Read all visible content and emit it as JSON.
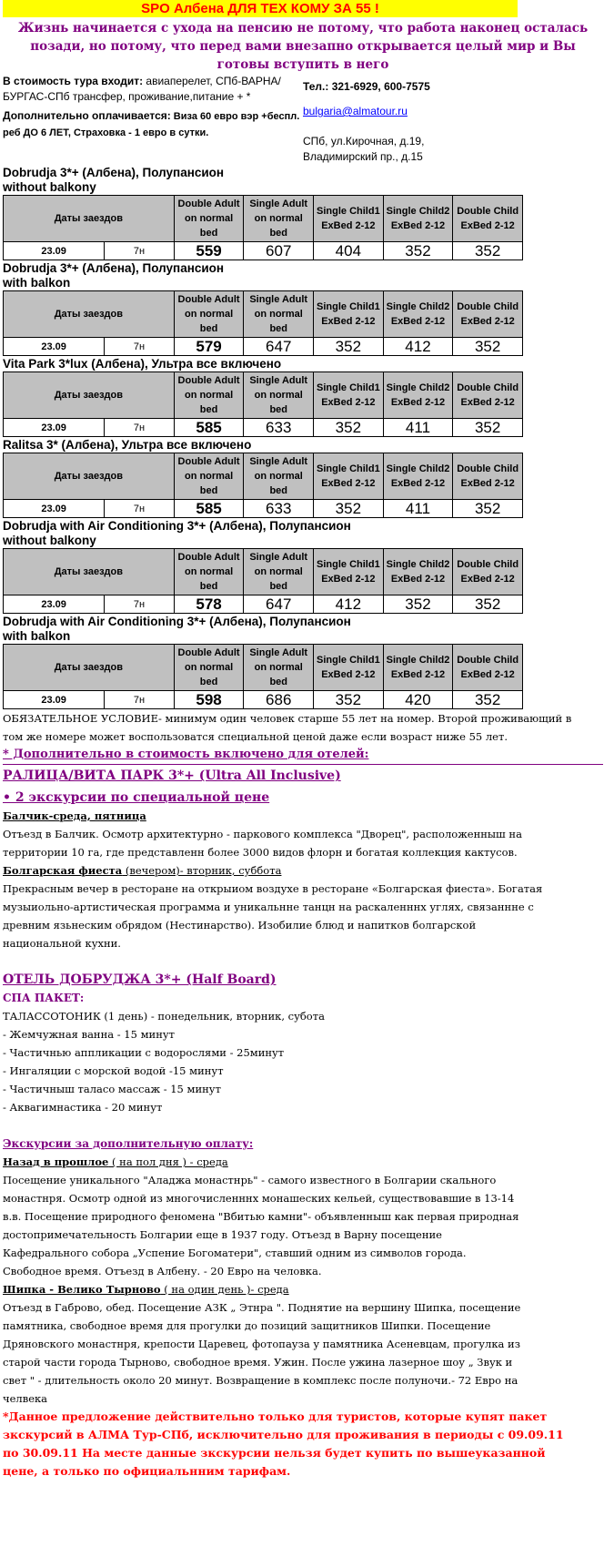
{
  "banner": "SPO Албена  ДЛЯ ТЕХ КОМУ ЗА 55 !",
  "motto": "Жизнь начинается с ухода на пенсию не потому, что работа наконец осталась позади, но потому, что перед вами внезапно открывается целый мир и Вы готовы вступить в него",
  "included_label": "В стоимость тура входит:",
  "included_text": " авиаперелет, СПб-ВАРНА/БУРГАС-СПб трансфер, проживание,питание +  *",
  "extra_label": "Дополнительно оплачивается:",
  "extra_text": " Виза 60 евро вэр +беспл. реб ДО 6 ЛЕТ,   Страховка - 1 евро в сутки.",
  "phone": "Тел.: 321-6929, 600-7575",
  "email": "bulgaria@almatour.ru ",
  "address1": "СПб, ул.Кирочная, д.19,",
  "address2": "Владимирский пр., д.15",
  "table_headers": [
    "Даты заездов",
    "Double Adult on normal bed",
    "Single Adult on normal bed",
    "Single Child1 ExBed 2-12",
    "Single Child2 ExBed 2-12",
    "Double Child ExBed 2-12"
  ],
  "hotels": [
    {
      "title1": "Dobrudja 3*+ (Албена), Полупансион",
      "title2": "without balkony",
      "date": "23.09",
      "nights": "7н",
      "prices": [
        "559",
        "607",
        "404",
        "352",
        "352"
      ]
    },
    {
      "title1": "Dobrudja 3*+ (Албена), Полупансион",
      "title2": "with balkon",
      "date": "23.09",
      "nights": "7н",
      "prices": [
        "579",
        "647",
        "352",
        "412",
        "352"
      ]
    },
    {
      "title1": "Vita Park 3*lux (Албена), Ультра все включено",
      "title2": "",
      "date": "23.09",
      "nights": "7н",
      "prices": [
        "585",
        "633",
        "352",
        "411",
        "352"
      ]
    },
    {
      "title1": "Ralitsa 3* (Албена), Ультра все включено",
      "title2": "",
      "date": "23.09",
      "nights": "7н",
      "prices": [
        "585",
        "633",
        "352",
        "411",
        "352"
      ]
    },
    {
      "title1": "Dobrudja with Air Conditioning 3*+ (Албена), Полупансион",
      "title2": "without balkony",
      "date": "23.09",
      "nights": "7н",
      "prices": [
        "578",
        "647",
        "412",
        "352",
        "352"
      ]
    },
    {
      "title1": "Dobrudja with Air Conditioning 3*+ (Албена), Полупансион",
      "title2": "with balkon",
      "date": "23.09",
      "nights": "7н",
      "prices": [
        "598",
        "686",
        "352",
        "420",
        "352"
      ]
    }
  ],
  "condition": "ОБЯЗАТЕЛЬНОЕ УСЛОВИЕ- минимум один человек старше 55 лет на номер. Второй проживающий в том же номере может воспользоватся специальной ценой даже если возраст ниже 55 лет.",
  "extra_included": "* Дополнительно в стоимость включено для отелей:",
  "ralitsa_heading": "РАЛИЦА/ВИТА ПАРК 3*+ (Ultra All Inclusive)",
  "two_excursions": "•  2 экскурсии по специальной цене",
  "balchik_title": "Балчик-среда, пятница",
  "balchik_text": "Отъезд в Балчик. Осмотр архитектурно - паркового комплекса \"Дворец\", расположенныш на территории 10 га, где представленн более 3000 видов флорн и богатая коллекция кактусов.",
  "fiesta_title": "Болгарская фиеста",
  "fiesta_sub": " (вечером)- вторник, суббота",
  "fiesta_text": "Прекрасным вечер в ресторане на открыиом воздухе в ресторане «Болгарская фиеста». Богатая музыиольно-артистическая программа и уникальнне танцн на раскаленннх углях, связаннне с древним язьнеским обрядом (Нестинарство). Изобилие блюд и напитков болгарской национальной кухни.",
  "dobrudja_heading": "ОТЕЛЬ ДОБРУДЖА 3*+ (Half Board)",
  "spa_label": "СПА ПАКЕТ:",
  "spa_items": [
    "ТАЛАССОТОНИК (1 день) - понедельник, вторник, субота",
    "- Жемчужная ванна - 15 минут",
    "- Частичнью аппликации с водорослями - 25минут",
    "- Ингаляции с морской водой -15 минут",
    "- Частичныш таласо массаж - 15 минут",
    "- Аквагимнастика - 20 минут"
  ],
  "paid_heading": "Экскурсии за дополнительную оплату:",
  "past_title": "Назад в прошлое",
  "past_sub": " ( на пол дня ) - среда",
  "past_text": "Посещение уникального \"Аладжа монастнрь\" - самого известного в Болгарии скального монастнря. Осмотр одной из многочисленннх монашеских кельей, существовавшие в 13-14 в.в. Посещение природного феномена \"Вбитью камни\"- объявленныш как первая природная достопримечательность Болгарии еще в 1937 году. Отъезд в Варну посещение Кафедрального собора „Успение Богоматери\", ставший одним из символов города. Свободное время. Отъезд в Албену. - 20 Евро на человка.",
  "shipka_title": "Шипка - Велико Тырново",
  "shipka_sub": " ( на один день )- среда",
  "shipka_text": "Отъезд в Габрово, обед. Посещение АЗК „ Этнра \". Поднятие на вершину Шипка, посещение памятника, свободное время для прогулки до позиций защитников Шипки. Посещение Дряновского монастнря, крепости Царевец, фотопауза у памятника Асеневцам, прогулка из старой части города Тырново, свободное время. Ужин. После ужина лазерное шоу „ Звук и свет \" - длительность около 20 минут. Возвращение в комплекс после полуночи.- 72 Евро на челвека",
  "disclaimer": "*Данное предложение действительно только для туристов, которые купят пакет зкскурсий в АЛМА Тур-СПб, исключительно для проживания в периоды с 09.09.11 по 30.09.11 На месте данные зкскурсии нельзя будет купить по вышеуказанной цене, а только по официальнним тарифам.",
  "colors": {
    "banner_bg": "#ffff00",
    "banner_text": "#ff0000",
    "accent": "#800080",
    "header_bg": "#c0c0c0",
    "disclaimer": "#ff0000"
  }
}
